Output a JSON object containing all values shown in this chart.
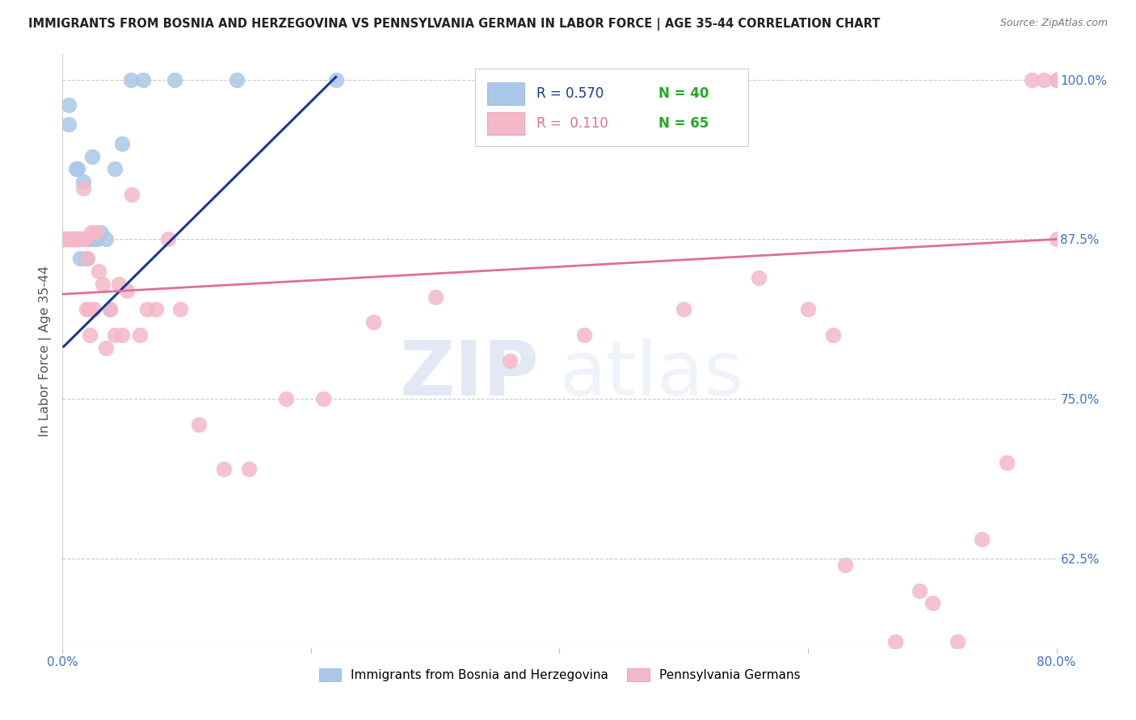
{
  "title": "IMMIGRANTS FROM BOSNIA AND HERZEGOVINA VS PENNSYLVANIA GERMAN IN LABOR FORCE | AGE 35-44 CORRELATION CHART",
  "source": "Source: ZipAtlas.com",
  "ylabel": "In Labor Force | Age 35-44",
  "ytick_labels": [
    "100.0%",
    "87.5%",
    "75.0%",
    "62.5%"
  ],
  "ytick_values": [
    1.0,
    0.875,
    0.75,
    0.625
  ],
  "legend_blue_r": "R = 0.570",
  "legend_blue_n": "N = 40",
  "legend_pink_r": "R =  0.110",
  "legend_pink_n": "N = 65",
  "blue_color": "#aac8e8",
  "pink_color": "#f4b8c8",
  "blue_line_color": "#1a3a8f",
  "pink_line_color": "#e07090",
  "watermark_zip": "ZIP",
  "watermark_atlas": "atlas",
  "title_color": "#222222",
  "axis_label_color": "#555555",
  "tick_color": "#4472c4",
  "grid_color": "#cccccc",
  "xlim": [
    0.0,
    0.8
  ],
  "ylim": [
    0.555,
    1.02
  ],
  "blue_scatter_x": [
    0.001,
    0.003,
    0.004,
    0.005,
    0.005,
    0.006,
    0.006,
    0.007,
    0.007,
    0.008,
    0.009,
    0.009,
    0.01,
    0.01,
    0.011,
    0.011,
    0.012,
    0.012,
    0.013,
    0.014,
    0.015,
    0.016,
    0.017,
    0.018,
    0.019,
    0.02,
    0.022,
    0.024,
    0.026,
    0.028,
    0.031,
    0.035,
    0.038,
    0.042,
    0.048,
    0.055,
    0.065,
    0.09,
    0.14,
    0.22
  ],
  "blue_scatter_y": [
    0.875,
    0.875,
    0.875,
    0.965,
    0.98,
    0.875,
    0.875,
    0.875,
    0.875,
    0.875,
    0.875,
    0.875,
    0.875,
    0.875,
    0.875,
    0.93,
    0.875,
    0.93,
    0.875,
    0.86,
    0.875,
    0.875,
    0.92,
    0.875,
    0.86,
    0.875,
    0.875,
    0.94,
    0.875,
    0.875,
    0.88,
    0.875,
    0.82,
    0.93,
    0.95,
    1.0,
    1.0,
    1.0,
    1.0,
    1.0
  ],
  "pink_scatter_x": [
    0.001,
    0.002,
    0.003,
    0.004,
    0.005,
    0.006,
    0.007,
    0.008,
    0.009,
    0.01,
    0.01,
    0.011,
    0.012,
    0.013,
    0.014,
    0.015,
    0.016,
    0.017,
    0.018,
    0.019,
    0.02,
    0.021,
    0.022,
    0.023,
    0.025,
    0.027,
    0.029,
    0.032,
    0.035,
    0.038,
    0.042,
    0.045,
    0.048,
    0.052,
    0.056,
    0.062,
    0.068,
    0.075,
    0.085,
    0.095,
    0.11,
    0.13,
    0.15,
    0.18,
    0.21,
    0.25,
    0.3,
    0.36,
    0.42,
    0.5,
    0.56,
    0.6,
    0.62,
    0.63,
    0.67,
    0.69,
    0.7,
    0.72,
    0.74,
    0.76,
    0.78,
    0.79,
    0.8,
    0.8,
    0.8
  ],
  "pink_scatter_y": [
    0.875,
    0.875,
    0.875,
    0.875,
    0.875,
    0.875,
    0.875,
    0.875,
    0.875,
    0.875,
    0.875,
    0.875,
    0.875,
    0.875,
    0.875,
    0.875,
    0.875,
    0.915,
    0.875,
    0.82,
    0.86,
    0.82,
    0.8,
    0.88,
    0.82,
    0.88,
    0.85,
    0.84,
    0.79,
    0.82,
    0.8,
    0.84,
    0.8,
    0.835,
    0.91,
    0.8,
    0.82,
    0.82,
    0.875,
    0.82,
    0.73,
    0.695,
    0.695,
    0.75,
    0.75,
    0.81,
    0.83,
    0.78,
    0.8,
    0.82,
    0.845,
    0.82,
    0.8,
    0.62,
    0.56,
    0.6,
    0.59,
    0.56,
    0.64,
    0.7,
    1.0,
    1.0,
    1.0,
    1.0,
    0.875
  ],
  "pink_line_x0": 0.0,
  "pink_line_y0": 0.832,
  "pink_line_x1": 0.8,
  "pink_line_y1": 0.875,
  "blue_line_x0": 0.001,
  "blue_line_y0": 0.791,
  "blue_line_x1": 0.22,
  "blue_line_y1": 1.002
}
